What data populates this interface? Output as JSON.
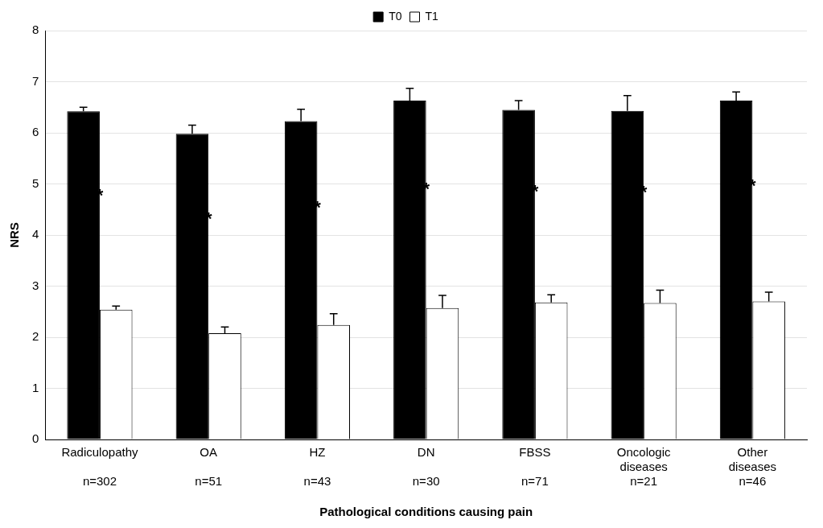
{
  "chart_data": {
    "type": "bar",
    "x_label": "Pathological conditions causing pain",
    "y_label": "NRS",
    "categories": [
      "Radiculopathy",
      "OA",
      "HZ",
      "DN",
      "FBSS",
      "Oncologic diseases",
      "Other diseases"
    ],
    "sample_sizes": [
      "n=302",
      "n=51",
      "n=43",
      "n=30",
      "n=71",
      "n=21",
      "n=46"
    ],
    "series": [
      {
        "name": "T0",
        "color": "#000000",
        "values": [
          6.42,
          5.98,
          6.23,
          6.63,
          6.45,
          6.43,
          6.63
        ],
        "errors": [
          0.08,
          0.17,
          0.23,
          0.24,
          0.18,
          0.3,
          0.17
        ]
      },
      {
        "name": "T1",
        "color": "#ffffff",
        "values": [
          2.54,
          2.08,
          2.24,
          2.57,
          2.68,
          2.67,
          2.7
        ],
        "errors": [
          0.07,
          0.12,
          0.22,
          0.25,
          0.15,
          0.25,
          0.18
        ]
      }
    ],
    "significance": [
      "*",
      "*",
      "*",
      "*",
      "*",
      "*",
      "*"
    ],
    "ylim": [
      0,
      8
    ],
    "yticks": [
      0,
      1,
      2,
      3,
      4,
      5,
      6,
      7,
      8
    ],
    "grid": true,
    "legend": "top"
  }
}
